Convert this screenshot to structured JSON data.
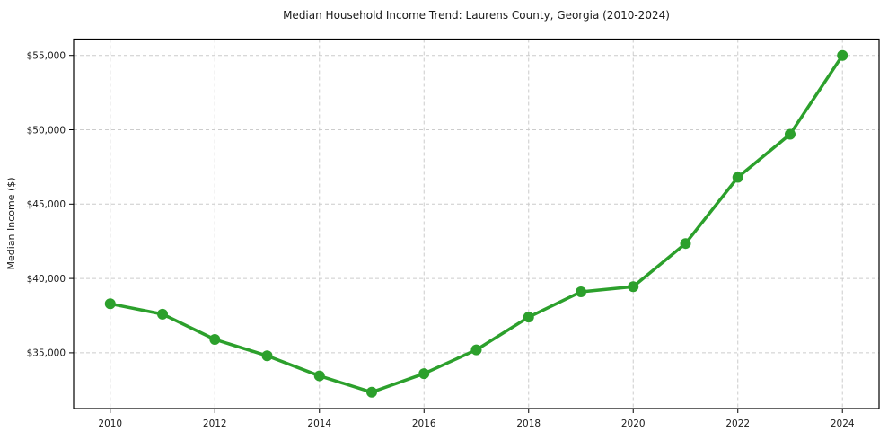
{
  "chart_data": {
    "type": "line",
    "title": "Median Household Income Trend: Laurens County, Georgia (2010-2024)",
    "xlabel": "",
    "ylabel": "Median Income ($)",
    "series": [
      {
        "name": "Median household income",
        "x": [
          2010,
          2011,
          2012,
          2013,
          2014,
          2015,
          2016,
          2017,
          2018,
          2019,
          2020,
          2021,
          2022,
          2023,
          2024
        ],
        "values": [
          38300,
          37600,
          35900,
          34800,
          33450,
          32350,
          33600,
          35200,
          37400,
          39100,
          39450,
          42350,
          46800,
          49700,
          55000
        ]
      }
    ],
    "xlim": [
      2009.3,
      2024.7
    ],
    "ylim": [
      31250,
      56100
    ],
    "x_ticks": [
      {
        "value": 2010,
        "label": "2010"
      },
      {
        "value": 2012,
        "label": "2012"
      },
      {
        "value": 2014,
        "label": "2014"
      },
      {
        "value": 2016,
        "label": "2016"
      },
      {
        "value": 2018,
        "label": "2018"
      },
      {
        "value": 2020,
        "label": "2020"
      },
      {
        "value": 2022,
        "label": "2022"
      },
      {
        "value": 2024,
        "label": "2024"
      }
    ],
    "y_ticks": [
      {
        "value": 35000,
        "label": "$35,000"
      },
      {
        "value": 40000,
        "label": "$40,000"
      },
      {
        "value": 45000,
        "label": "$45,000"
      },
      {
        "value": 50000,
        "label": "$50,000"
      },
      {
        "value": 55000,
        "label": "$55,000"
      }
    ],
    "grid": true,
    "grid_style": "dashed",
    "legend_position": "none",
    "marker": "circle",
    "colors": {
      "line": "#2ca02c",
      "marker": "#2ca02c",
      "grid": "#cccccc",
      "spine": "#000000",
      "text": "#1a1a1a",
      "background": "#ffffff"
    }
  }
}
